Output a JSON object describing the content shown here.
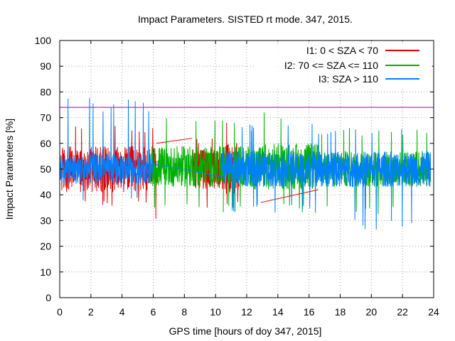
{
  "chart_data": {
    "type": "line",
    "title": "Impact Parameters. SISTED rt mode. 347, 2015.",
    "xlabel": "GPS time [hours of doy 347, 2015]",
    "ylabel": "Impact Parameters [%]",
    "xlim": [
      0,
      24
    ],
    "ylim": [
      0,
      100
    ],
    "xticks": [
      0,
      2,
      4,
      6,
      8,
      10,
      12,
      14,
      16,
      18,
      20,
      22,
      24
    ],
    "yticks": [
      0,
      10,
      20,
      30,
      40,
      50,
      60,
      70,
      80,
      90,
      100
    ],
    "grid": true,
    "legend_position": "top-right",
    "threshold": {
      "y": 74,
      "color": "#9400d3"
    },
    "series": [
      {
        "name": "I1: 0 < SZA < 70",
        "color": "#e00000",
        "segments": [
          {
            "start": 0.0,
            "end": 6.0,
            "center": 50,
            "amplitude": 9,
            "min": 35,
            "max": 67
          },
          {
            "start": 6.0,
            "end": 6.2,
            "center": 50,
            "amplitude": 8,
            "min": 28,
            "max": 62
          },
          {
            "start": 8.5,
            "end": 10.5,
            "center": 50,
            "amplitude": 8,
            "min": 32,
            "max": 62
          },
          {
            "start": 10.5,
            "end": 11.5,
            "center": 50,
            "amplitude": 10,
            "min": 35,
            "max": 70
          }
        ],
        "bridges": [
          {
            "x": [
              6.2,
              8.5
            ],
            "y": [
              60,
              62
            ]
          },
          {
            "x": [
              12.9,
              16.6
            ],
            "y": [
              37,
              42
            ]
          }
        ]
      },
      {
        "name": "I2: 70 <= SZA <= 110",
        "color": "#00b000",
        "segments": [
          {
            "start": 5.8,
            "end": 10.6,
            "center": 51,
            "amplitude": 8,
            "min": 35,
            "max": 73
          },
          {
            "start": 10.5,
            "end": 12.5,
            "center": 51,
            "amplitude": 8,
            "min": 33,
            "max": 68
          },
          {
            "start": 12.5,
            "end": 16.6,
            "center": 51,
            "amplitude": 9,
            "min": 33,
            "max": 74
          },
          {
            "start": 16.6,
            "end": 23.8,
            "center": 50,
            "amplitude": 7,
            "min": 32,
            "max": 66
          }
        ],
        "bridges": []
      },
      {
        "name": "I3: SZA > 110",
        "color": "#0080ff",
        "segments": [
          {
            "start": 0.0,
            "end": 6.0,
            "center": 50,
            "amplitude": 6,
            "min": 37,
            "max": 78
          },
          {
            "start": 10.4,
            "end": 16.7,
            "center": 50,
            "amplitude": 7,
            "min": 33,
            "max": 68
          },
          {
            "start": 16.6,
            "end": 23.8,
            "center": 50,
            "amplitude": 7,
            "min": 26,
            "max": 66
          }
        ],
        "bridges": [
          {
            "x": [
              6.0,
              10.4
            ],
            "y": [
              52,
              47
            ]
          }
        ]
      }
    ]
  }
}
